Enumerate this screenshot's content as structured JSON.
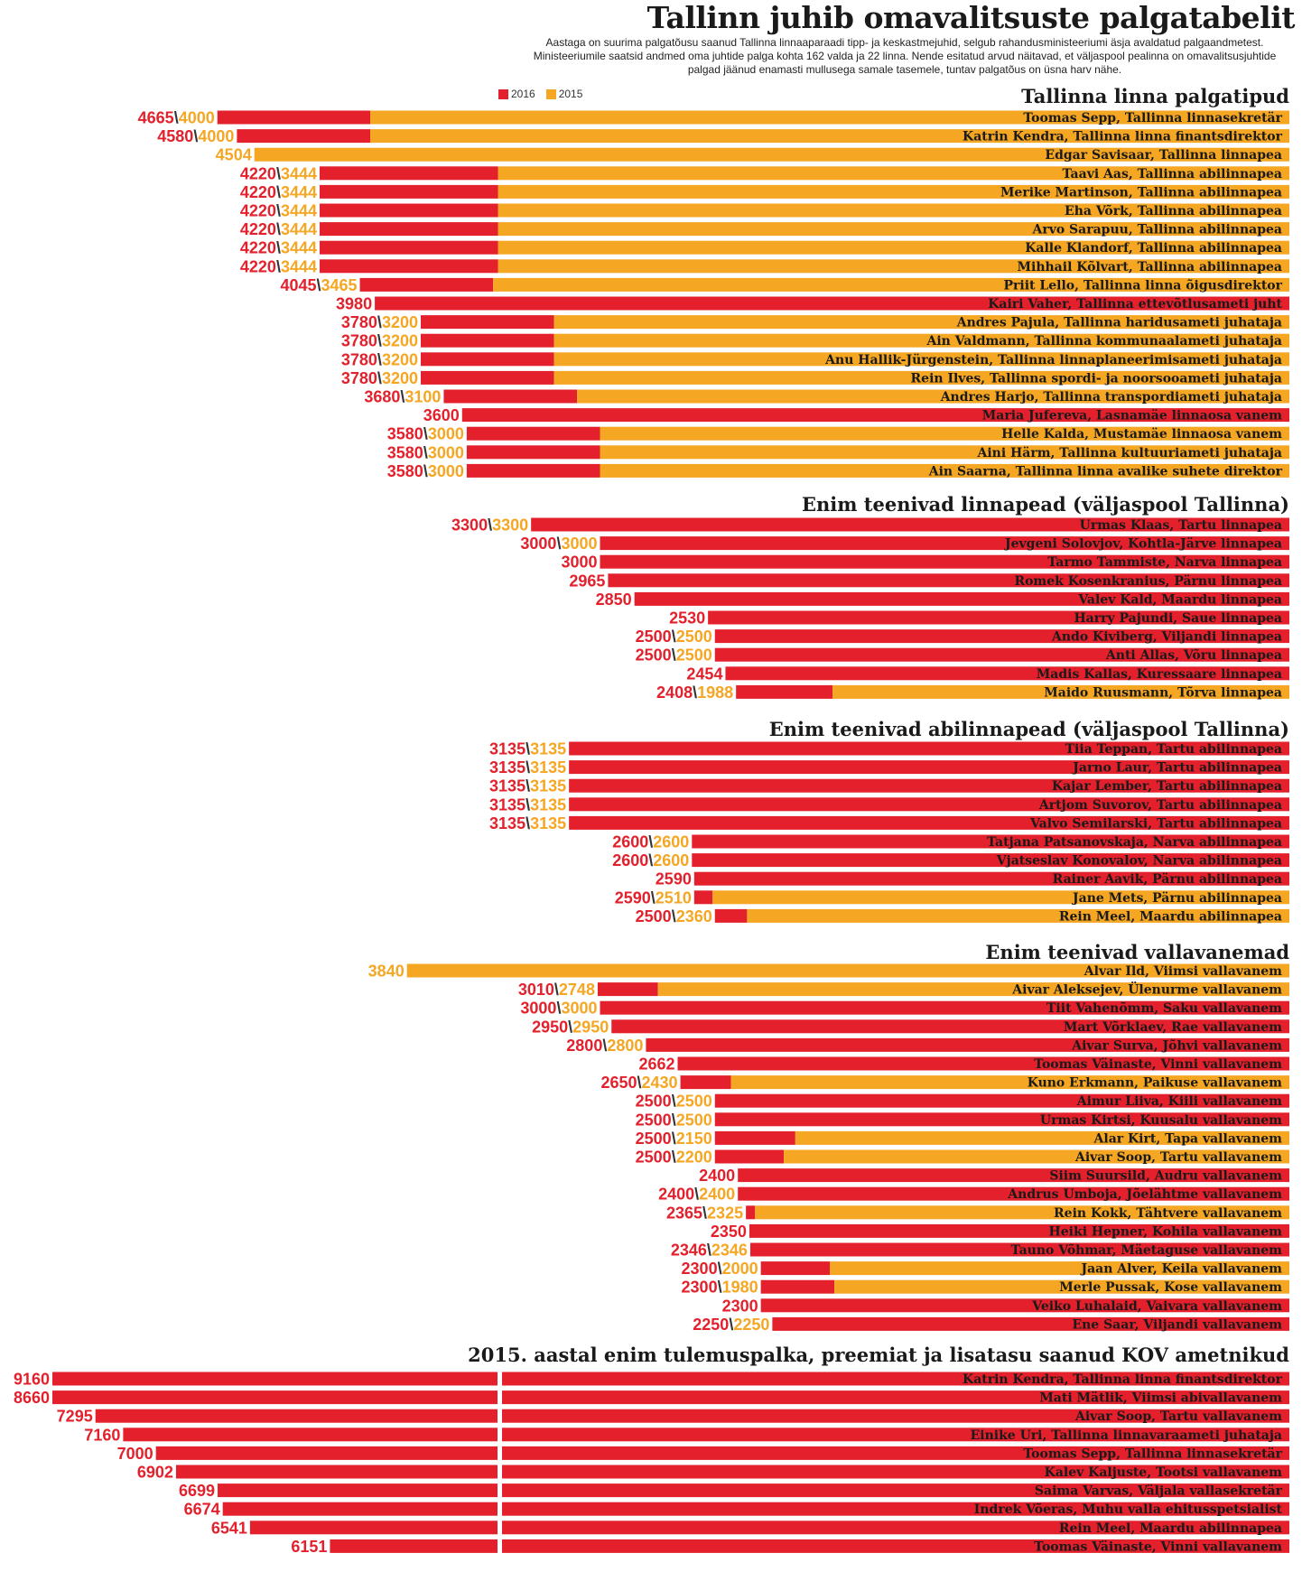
{
  "title": "Tallinn juhib omavalitsuste palgatabelit",
  "subtitle": "Aastaga on suurima palgatõusu saanud Tallinna linnaaparaadi tipp- ja keskastmejuhid, selgub rahandusministeeriumi äsja avaldatud palgaandmetest. Ministeeriumile saatsid andmed oma juhtide palga kohta 162 valda ja 22 linna. Nende esitatud arvud näitavad, et väljaspool pealinna on omavalitsusjuhtide palgad jäänud enamasti mullusega samale tasemele, tuntav palgatõus on üsna harv nähe.",
  "legend": {
    "label_2016": "2016",
    "label_2015": "2015"
  },
  "colors": {
    "c2016": "#e3202b",
    "c2015": "#f5a623"
  },
  "chart_data": {
    "type": "bar",
    "orientation": "horizontal",
    "series_names": [
      "2016",
      "2015"
    ],
    "sections": [
      {
        "title": "Tallinna linna palgatipud",
        "rows": [
          {
            "label": "Toomas Sepp, Tallinna linnasekretär",
            "v2016": 4665,
            "v2015": 4000
          },
          {
            "label": "Katrin Kendra, Tallinna linna finantsdirektor",
            "v2016": 4580,
            "v2015": 4000
          },
          {
            "label": "Edgar Savisaar, Tallinna linnapea",
            "v2016": null,
            "v2015": 4504
          },
          {
            "label": "Taavi Aas, Tallinna abilinnapea",
            "v2016": 4220,
            "v2015": 3444
          },
          {
            "label": "Merike Martinson, Tallinna abilinnapea",
            "v2016": 4220,
            "v2015": 3444
          },
          {
            "label": "Eha Võrk, Tallinna abilinnapea",
            "v2016": 4220,
            "v2015": 3444
          },
          {
            "label": "Arvo Sarapuu, Tallinna abilinnapea",
            "v2016": 4220,
            "v2015": 3444
          },
          {
            "label": "Kalle Klandorf, Tallinna abilinnapea",
            "v2016": 4220,
            "v2015": 3444
          },
          {
            "label": "Mihhail Kõlvart, Tallinna abilinnapea",
            "v2016": 4220,
            "v2015": 3444
          },
          {
            "label": "Priit Lello, Tallinna linna õigusdirektor",
            "v2016": 4045,
            "v2015": 3465
          },
          {
            "label": "Kairi Vaher, Tallinna ettevõtlusameti juht",
            "v2016": 3980,
            "v2015": null
          },
          {
            "label": "Andres Pajula, Tallinna haridusameti juhataja",
            "v2016": 3780,
            "v2015": 3200
          },
          {
            "label": "Ain Valdmann, Tallinna kommunaalameti juhataja",
            "v2016": 3780,
            "v2015": 3200
          },
          {
            "label": "Anu Hallik-Jürgenstein, Tallinna linnaplaneerimisameti juhataja",
            "v2016": 3780,
            "v2015": 3200
          },
          {
            "label": "Rein Ilves, Tallinna spordi- ja noorsooameti juhataja",
            "v2016": 3780,
            "v2015": 3200
          },
          {
            "label": "Andres Harjo, Tallinna transpordiameti juhataja",
            "v2016": 3680,
            "v2015": 3100
          },
          {
            "label": "Maria Jufereva, Lasnamäe linnaosa vanem",
            "v2016": 3600,
            "v2015": null
          },
          {
            "label": "Helle Kalda, Mustamäe linnaosa vanem",
            "v2016": 3580,
            "v2015": 3000
          },
          {
            "label": "Aini Härm, Tallinna kultuuriameti juhataja",
            "v2016": 3580,
            "v2015": 3000
          },
          {
            "label": "Ain Saarna, Tallinna linna avalike suhete direktor",
            "v2016": 3580,
            "v2015": 3000
          }
        ]
      },
      {
        "title": "Enim teenivad linnapead (väljaspool Tallinna)",
        "rows": [
          {
            "label": "Urmas Klaas, Tartu linnapea",
            "v2016": 3300,
            "v2015": 3300
          },
          {
            "label": "Jevgeni Solovjov, Kohtla-Järve linnapea",
            "v2016": 3000,
            "v2015": 3000
          },
          {
            "label": "Tarmo Tammiste, Narva linnapea",
            "v2016": 3000,
            "v2015": null
          },
          {
            "label": "Romek Kosenkranius, Pärnu linnapea",
            "v2016": 2965,
            "v2015": null
          },
          {
            "label": "Valev Kald, Maardu linnapea",
            "v2016": 2850,
            "v2015": null
          },
          {
            "label": "Harry Pajundi, Saue linnapea",
            "v2016": 2530,
            "v2015": null
          },
          {
            "label": "Ando Kiviberg, Viljandi linnapea",
            "v2016": 2500,
            "v2015": 2500
          },
          {
            "label": "Anti Allas, Võru linnapea",
            "v2016": 2500,
            "v2015": 2500
          },
          {
            "label": "Madis Kallas, Kuressaare linnapea",
            "v2016": 2454,
            "v2015": null
          },
          {
            "label": "Maido Ruusmann, Tõrva linnapea",
            "v2016": 2408,
            "v2015": 1988
          }
        ]
      },
      {
        "title": "Enim teenivad abilinnapead (väljaspool Tallinna)",
        "rows": [
          {
            "label": "Tiia Teppan, Tartu abilinnapea",
            "v2016": 3135,
            "v2015": 3135
          },
          {
            "label": "Jarno Laur, Tartu abilinnapea",
            "v2016": 3135,
            "v2015": 3135
          },
          {
            "label": "Kajar Lember, Tartu abilinnapea",
            "v2016": 3135,
            "v2015": 3135
          },
          {
            "label": "Artjom Suvorov, Tartu abilinnapea",
            "v2016": 3135,
            "v2015": 3135
          },
          {
            "label": "Valvo Semilarski, Tartu abilinnapea",
            "v2016": 3135,
            "v2015": 3135
          },
          {
            "label": "Tatjana Patsanovskaja, Narva abilinnapea",
            "v2016": 2600,
            "v2015": 2600
          },
          {
            "label": "Vjatseslav Konovalov, Narva abilinnapea",
            "v2016": 2600,
            "v2015": 2600
          },
          {
            "label": "Rainer Aavik, Pärnu abilinnapea",
            "v2016": 2590,
            "v2015": null
          },
          {
            "label": "Jane Mets, Pärnu abilinnapea",
            "v2016": 2590,
            "v2015": 2510
          },
          {
            "label": "Rein Meel, Maardu abilinnapea",
            "v2016": 2500,
            "v2015": 2360
          }
        ]
      },
      {
        "title": "Enim teenivad vallavanemad",
        "rows": [
          {
            "label": "Alvar Ild, Viimsi vallavanem",
            "v2016": null,
            "v2015": 3840
          },
          {
            "label": "Aivar Aleksejev, Ülenurme vallavanem",
            "v2016": 3010,
            "v2015": 2748
          },
          {
            "label": "Tiit Vahenõmm, Saku vallavanem",
            "v2016": 3000,
            "v2015": 3000
          },
          {
            "label": "Mart Võrklaev, Rae vallavanem",
            "v2016": 2950,
            "v2015": 2950
          },
          {
            "label": "Aivar Surva, Jõhvi vallavanem",
            "v2016": 2800,
            "v2015": 2800
          },
          {
            "label": "Toomas Väinaste, Vinni vallavanem",
            "v2016": 2662,
            "v2015": null
          },
          {
            "label": "Kuno Erkmann, Paikuse vallavanem",
            "v2016": 2650,
            "v2015": 2430
          },
          {
            "label": "Aimur Liiva, Kiili vallavanem",
            "v2016": 2500,
            "v2015": 2500
          },
          {
            "label": "Urmas Kirtsi, Kuusalu vallavanem",
            "v2016": 2500,
            "v2015": 2500
          },
          {
            "label": "Alar Kirt, Tapa vallavanem",
            "v2016": 2500,
            "v2015": 2150
          },
          {
            "label": "Aivar Soop, Tartu vallavanem",
            "v2016": 2500,
            "v2015": 2200
          },
          {
            "label": "Siim Suursild, Audru vallavanem",
            "v2016": 2400,
            "v2015": null
          },
          {
            "label": "Andrus Umboja, Jõelähtme vallavanem",
            "v2016": 2400,
            "v2015": 2400
          },
          {
            "label": "Rein Kokk, Tähtvere vallavanem",
            "v2016": 2365,
            "v2015": 2325
          },
          {
            "label": "Heiki Hepner, Kohila vallavanem",
            "v2016": 2350,
            "v2015": null
          },
          {
            "label": "Tauno Võhmar, Mäetaguse vallavanem",
            "v2016": 2346,
            "v2015": 2346
          },
          {
            "label": "Jaan Alver, Keila vallavanem",
            "v2016": 2300,
            "v2015": 2000
          },
          {
            "label": "Merle Pussak, Kose vallavanem",
            "v2016": 2300,
            "v2015": 1980
          },
          {
            "label": "Veiko Luhalaid, Vaivara vallavanem",
            "v2016": 2300,
            "v2015": null
          },
          {
            "label": "Ene Saar, Viljandi vallavanem",
            "v2016": 2250,
            "v2015": 2250
          }
        ]
      },
      {
        "title": "2015. aastal enim tulemuspalka, preemiat ja lisatasu saanud KOV ametnikud",
        "broken_axis": true,
        "rows": [
          {
            "label": "Katrin Kendra, Tallinna linna finantsdirektor",
            "v2016": 9160,
            "v2015": null
          },
          {
            "label": "Mati Mätlik, Viimsi abivallavanem",
            "v2016": 8660,
            "v2015": null
          },
          {
            "label": "Aivar Soop, Tartu vallavanem",
            "v2016": 7295,
            "v2015": null
          },
          {
            "label": "Einike Uri, Tallinna linnavaraameti juhataja",
            "v2016": 7160,
            "v2015": null
          },
          {
            "label": "Toomas Sepp, Tallinna linnasekretär",
            "v2016": 7000,
            "v2015": null
          },
          {
            "label": "Kalev Kaljuste, Tootsi vallavanem",
            "v2016": 6902,
            "v2015": null
          },
          {
            "label": "Saima Varvas, Väljala vallasekretär",
            "v2016": 6699,
            "v2015": null
          },
          {
            "label": "Indrek Võeras, Muhu valla ehitusspetsialist",
            "v2016": 6674,
            "v2015": null
          },
          {
            "label": "Rein Meel, Maardu abilinnapea",
            "v2016": 6541,
            "v2015": null
          },
          {
            "label": "Toomas Väinaste, Vinni vallavanem",
            "v2016": 6151,
            "v2015": null
          }
        ]
      }
    ]
  }
}
